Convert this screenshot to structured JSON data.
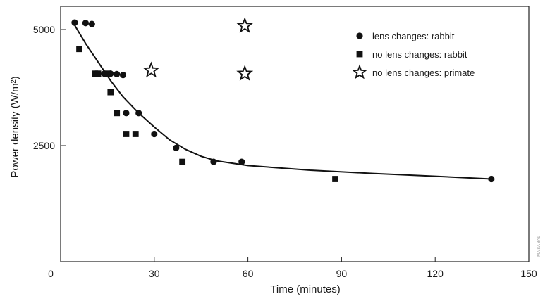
{
  "chart_data": {
    "type": "scatter",
    "title": "",
    "xlabel": "Time (minutes)",
    "ylabel": "Power density (W/m²)",
    "xlim": [
      0,
      150
    ],
    "ylim": [
      0,
      5500
    ],
    "origin_label": "0",
    "x_ticks": [
      30,
      60,
      90,
      120,
      150
    ],
    "y_ticks": [
      2500,
      5000
    ],
    "legend_position": "top-right",
    "series": [
      {
        "name": "lens changes: rabbit",
        "marker": "circle",
        "points": [
          [
            4.5,
            5150
          ],
          [
            8,
            5140
          ],
          [
            10,
            5120
          ],
          [
            14,
            4050
          ],
          [
            16,
            4050
          ],
          [
            18,
            4040
          ],
          [
            20,
            4020
          ],
          [
            21,
            3200
          ],
          [
            25,
            3200
          ],
          [
            30,
            2750
          ],
          [
            37,
            2450
          ],
          [
            49,
            2150
          ],
          [
            58,
            2150
          ],
          [
            138,
            1780
          ]
        ]
      },
      {
        "name": "no lens changes: rabbit",
        "marker": "square",
        "points": [
          [
            6,
            4580
          ],
          [
            11,
            4050
          ],
          [
            12,
            4050
          ],
          [
            15,
            4050
          ],
          [
            16,
            3650
          ],
          [
            18,
            3200
          ],
          [
            21,
            2750
          ],
          [
            24,
            2750
          ],
          [
            39,
            2150
          ],
          [
            88,
            1780
          ]
        ]
      },
      {
        "name": "no lens changes: primate",
        "marker": "star",
        "points": [
          [
            29,
            4120
          ],
          [
            59,
            5080
          ],
          [
            59,
            4050
          ]
        ]
      }
    ],
    "fit_curve": [
      [
        4,
        5150
      ],
      [
        8,
        4700
      ],
      [
        12,
        4300
      ],
      [
        16,
        3900
      ],
      [
        20,
        3550
      ],
      [
        25,
        3200
      ],
      [
        30,
        2900
      ],
      [
        35,
        2620
      ],
      [
        40,
        2420
      ],
      [
        45,
        2270
      ],
      [
        50,
        2170
      ],
      [
        60,
        2070
      ],
      [
        80,
        1970
      ],
      [
        100,
        1900
      ],
      [
        120,
        1840
      ],
      [
        138,
        1780
      ]
    ],
    "side_annotation": "MA 8A 8A9"
  }
}
